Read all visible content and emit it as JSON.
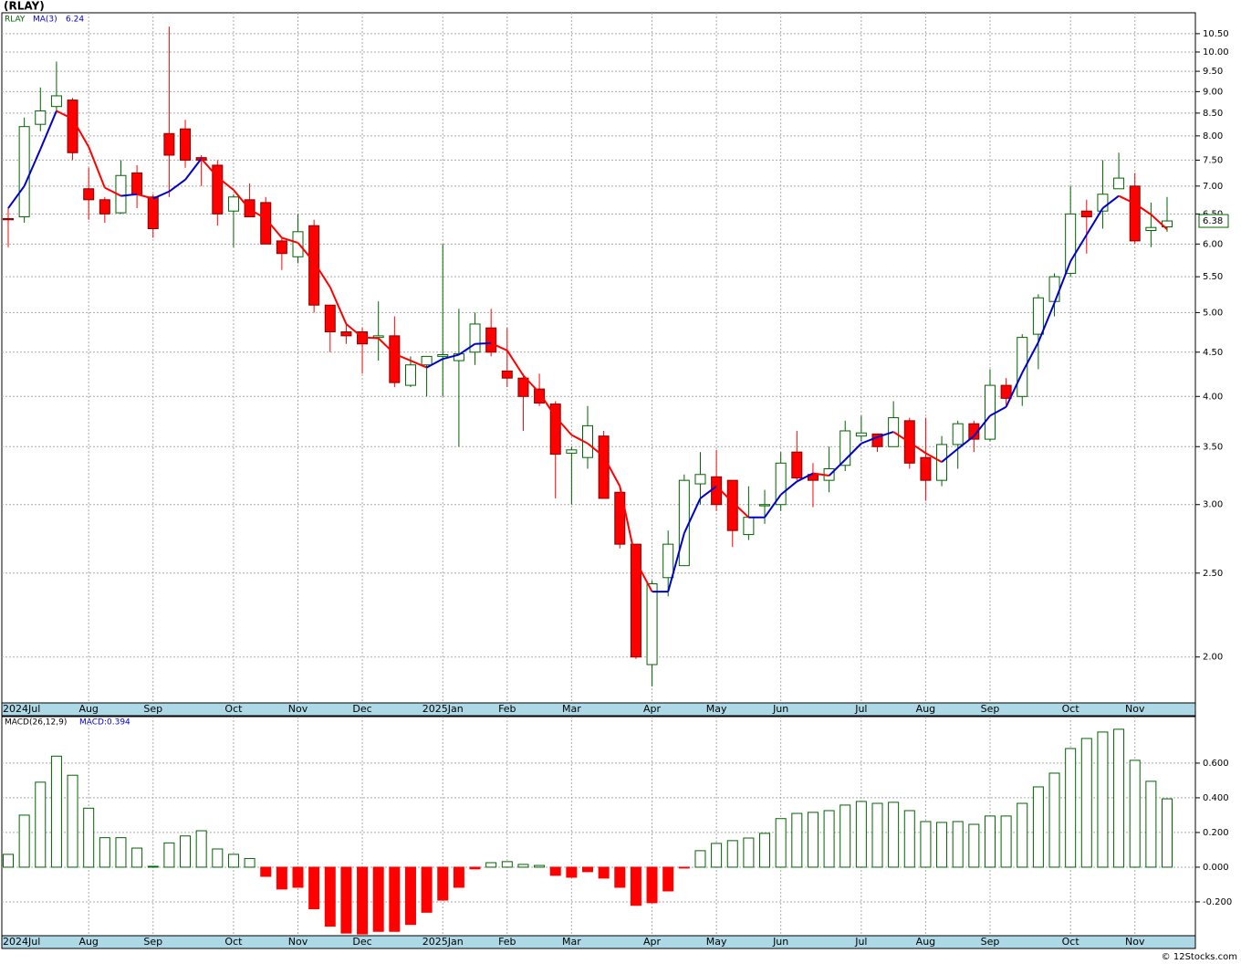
{
  "chart_data": [
    {
      "type": "candlestick",
      "title": "(RLAY)",
      "symbol": "RLAY",
      "log_scale": true,
      "grid": true,
      "up_color": "#006400",
      "down_color": "#ff0000",
      "categories": [
        "2024Jul",
        null,
        null,
        null,
        null,
        "Aug",
        null,
        null,
        null,
        "Sep",
        null,
        null,
        null,
        null,
        "Oct",
        null,
        null,
        null,
        "Nov",
        null,
        null,
        null,
        "Dec",
        null,
        null,
        null,
        null,
        "2025Jan",
        null,
        null,
        null,
        "Feb",
        null,
        null,
        null,
        "Mar",
        null,
        null,
        null,
        null,
        "Apr",
        null,
        null,
        null,
        "May",
        null,
        null,
        null,
        "Jun",
        null,
        null,
        null,
        null,
        "Jul",
        null,
        null,
        null,
        "Aug",
        null,
        null,
        null,
        "Sep",
        null,
        null,
        null,
        null,
        "Oct",
        null,
        null,
        null,
        "Nov",
        null,
        null
      ],
      "open": [
        6.42,
        6.45,
        8.25,
        8.65,
        8.8,
        6.95,
        6.75,
        6.52,
        7.25,
        6.8,
        8.05,
        8.15,
        7.55,
        7.4,
        6.55,
        6.75,
        6.7,
        6.05,
        5.8,
        6.3,
        5.1,
        4.75,
        4.75,
        4.68,
        4.7,
        4.12,
        4.35,
        4.45,
        4.4,
        4.5,
        4.8,
        4.28,
        4.2,
        4.08,
        3.92,
        3.44,
        3.4,
        3.6,
        3.1,
        2.7,
        1.96,
        2.47,
        2.55,
        3.17,
        3.23,
        3.2,
        2.77,
        2.99,
        3.0,
        3.45,
        3.25,
        3.2,
        3.33,
        3.6,
        3.62,
        3.5,
        3.75,
        3.4,
        3.2,
        3.52,
        3.72,
        3.57,
        4.12,
        4.0,
        4.72,
        5.15,
        5.55,
        6.55,
        6.55,
        6.95,
        7.0,
        6.22,
        6.28
      ],
      "high": [
        6.6,
        8.4,
        9.1,
        9.75,
        8.85,
        7.35,
        6.8,
        7.5,
        7.4,
        6.85,
        10.7,
        8.35,
        7.6,
        7.5,
        6.85,
        7.05,
        6.8,
        6.1,
        6.5,
        6.4,
        5.1,
        4.85,
        4.8,
        5.15,
        4.95,
        4.45,
        4.45,
        6.0,
        5.05,
        5.0,
        5.05,
        4.8,
        4.25,
        4.25,
        3.95,
        3.5,
        3.9,
        3.65,
        3.1,
        2.7,
        2.45,
        2.8,
        3.25,
        3.45,
        3.47,
        3.2,
        3.15,
        3.12,
        3.45,
        3.65,
        3.35,
        3.5,
        3.75,
        3.8,
        3.62,
        3.95,
        3.78,
        3.78,
        3.6,
        3.75,
        3.75,
        4.3,
        4.2,
        4.72,
        5.25,
        5.55,
        7.0,
        6.75,
        7.5,
        7.65,
        7.25,
        6.7,
        6.8
      ],
      "low": [
        5.95,
        6.35,
        8.1,
        8.55,
        7.5,
        6.4,
        6.35,
        6.5,
        6.6,
        6.1,
        6.8,
        7.35,
        7.0,
        6.3,
        5.95,
        6.45,
        6.0,
        5.6,
        5.7,
        5.0,
        4.5,
        4.6,
        4.25,
        4.4,
        4.1,
        4.1,
        4.0,
        4.0,
        3.5,
        4.35,
        4.45,
        4.1,
        3.65,
        3.9,
        3.05,
        3.0,
        3.3,
        3.05,
        2.67,
        1.99,
        1.85,
        2.35,
        2.55,
        3.0,
        2.95,
        2.68,
        2.73,
        2.85,
        2.95,
        3.2,
        2.98,
        3.1,
        3.28,
        3.55,
        3.45,
        3.5,
        3.3,
        3.03,
        3.15,
        3.3,
        3.45,
        3.55,
        3.9,
        3.9,
        4.3,
        4.95,
        5.5,
        5.85,
        6.25,
        6.95,
        6.0,
        5.95,
        6.2
      ],
      "close": [
        6.4,
        8.2,
        8.55,
        8.9,
        7.65,
        6.75,
        6.5,
        7.2,
        6.85,
        6.25,
        7.6,
        7.5,
        7.5,
        6.5,
        6.8,
        6.45,
        6.0,
        5.85,
        6.2,
        5.1,
        4.75,
        4.7,
        4.6,
        4.7,
        4.15,
        4.35,
        4.45,
        4.47,
        4.48,
        4.85,
        4.5,
        4.2,
        4.0,
        3.93,
        3.43,
        3.47,
        3.7,
        3.05,
        2.7,
        2.0,
        2.43,
        2.7,
        3.2,
        3.25,
        3.0,
        2.8,
        2.9,
        3.0,
        3.35,
        3.22,
        3.2,
        3.3,
        3.65,
        3.63,
        3.5,
        3.78,
        3.35,
        3.2,
        3.52,
        3.72,
        3.57,
        4.12,
        3.98,
        4.68,
        5.2,
        5.5,
        6.5,
        6.45,
        6.85,
        7.15,
        6.05,
        6.27,
        6.38
      ],
      "last_label": "6.38",
      "ma": {
        "name": "MA(3)",
        "value_label": "6.24",
        "up_color": "#0000cc",
        "down_color": "#ff0000",
        "values": [
          6.6,
          7.0,
          7.72,
          8.55,
          8.37,
          7.77,
          6.97,
          6.82,
          6.85,
          6.77,
          6.9,
          7.12,
          7.53,
          7.17,
          6.93,
          6.58,
          6.42,
          6.1,
          6.02,
          5.72,
          5.35,
          4.85,
          4.68,
          4.67,
          4.48,
          4.4,
          4.32,
          4.42,
          4.47,
          4.6,
          4.61,
          4.52,
          4.23,
          4.04,
          3.79,
          3.61,
          3.53,
          3.41,
          3.15,
          2.58,
          2.38,
          2.38,
          2.78,
          3.05,
          3.15,
          3.02,
          2.9,
          2.9,
          3.08,
          3.19,
          3.26,
          3.24,
          3.38,
          3.53,
          3.59,
          3.64,
          3.54,
          3.44,
          3.36,
          3.48,
          3.6,
          3.8,
          3.89,
          4.26,
          4.62,
          5.13,
          5.73,
          6.15,
          6.6,
          6.82,
          6.68,
          6.49,
          6.24
        ]
      },
      "ylim": [
        1.77,
        11.1
      ],
      "yticks": [
        {
          "value": 2,
          "label": "2.00"
        },
        {
          "value": 2.5,
          "label": "2.50"
        },
        {
          "value": 3,
          "label": "3.00"
        },
        {
          "value": 3.5,
          "label": "3.50"
        },
        {
          "value": 4,
          "label": "4.00"
        },
        {
          "value": 4.5,
          "label": "4.50"
        },
        {
          "value": 5,
          "label": "5.00"
        },
        {
          "value": 5.5,
          "label": "5.50"
        },
        {
          "value": 6,
          "label": "6.00"
        },
        {
          "value": 6.5,
          "label": "6.50"
        },
        {
          "value": 7,
          "label": "7.00"
        },
        {
          "value": 7.5,
          "label": "7.50"
        },
        {
          "value": 8,
          "label": "8.00"
        },
        {
          "value": 8.5,
          "label": "8.50"
        },
        {
          "value": 9,
          "label": "9.00"
        },
        {
          "value": 9.5,
          "label": "9.50"
        },
        {
          "value": 10,
          "label": "10.00"
        },
        {
          "value": 10.5,
          "label": "10.50"
        }
      ]
    },
    {
      "type": "bar",
      "name": "MACD(26,12,9)",
      "value_label": "MACD:0.394",
      "grid": true,
      "up_color": "#006400",
      "down_color": "#ff0000",
      "values": [
        0.074,
        0.3,
        0.49,
        0.64,
        0.53,
        0.34,
        0.17,
        0.17,
        0.11,
        0.005,
        0.14,
        0.18,
        0.21,
        0.105,
        0.074,
        0.05,
        -0.053,
        -0.126,
        -0.116,
        -0.24,
        -0.34,
        -0.38,
        -0.385,
        -0.37,
        -0.37,
        -0.33,
        -0.26,
        -0.19,
        -0.116,
        -0.01,
        0.026,
        0.032,
        0.016,
        0.01,
        -0.047,
        -0.058,
        -0.026,
        -0.063,
        -0.116,
        -0.22,
        -0.205,
        -0.137,
        -0.005,
        0.095,
        0.137,
        0.153,
        0.168,
        0.195,
        0.28,
        0.31,
        0.316,
        0.326,
        0.358,
        0.379,
        0.368,
        0.374,
        0.326,
        0.263,
        0.258,
        0.263,
        0.247,
        0.295,
        0.295,
        0.368,
        0.463,
        0.542,
        0.684,
        0.742,
        0.779,
        0.795,
        0.616,
        0.495,
        0.394
      ],
      "ylim": [
        -0.395,
        0.868
      ],
      "yticks": [
        {
          "value": -0.2,
          "label": "-0.200"
        },
        {
          "value": 0,
          "label": "0.000"
        },
        {
          "value": 0.2,
          "label": "0.200"
        },
        {
          "value": 0.4,
          "label": "0.400"
        },
        {
          "value": 0.6,
          "label": "0.600"
        }
      ]
    }
  ],
  "footer": "© 12Stocks.com"
}
